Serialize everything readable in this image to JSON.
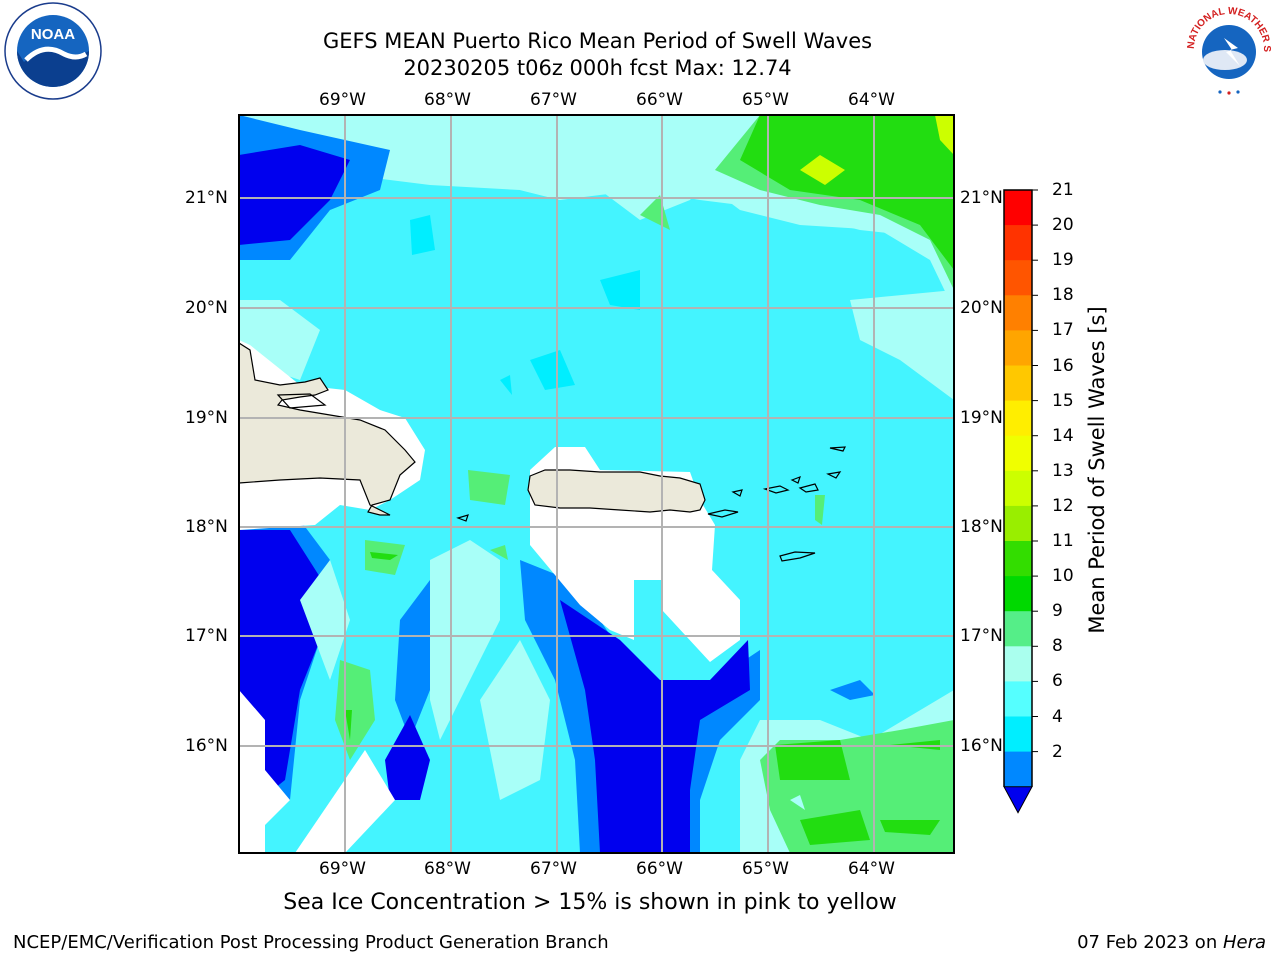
{
  "header": {
    "title_line1": "GEFS MEAN Puerto Rico Mean Period of Swell Waves",
    "title_line2": "20230205 t06z 000h fcst   Max: 12.74"
  },
  "logos": {
    "left": "NOAA",
    "right": "NATIONAL WEATHER SERVICE"
  },
  "map": {
    "lon_labels": [
      "69°W",
      "68°W",
      "67°W",
      "66°W",
      "65°W",
      "64°W"
    ],
    "lat_labels": [
      "21°N",
      "20°N",
      "19°N",
      "18°N",
      "17°N",
      "16°N"
    ]
  },
  "colorbar": {
    "title": "Mean Period of Swell Waves [s]",
    "ticks": [
      "21",
      "20",
      "19",
      "18",
      "17",
      "16",
      "15",
      "14",
      "13",
      "12",
      "11",
      "10",
      "9",
      "8",
      "6",
      "4",
      "2"
    ],
    "colors": [
      "#ff0000",
      "#ff3300",
      "#ff5500",
      "#ff8000",
      "#ffa500",
      "#ffc800",
      "#ffee00",
      "#f0ff00",
      "#ccff00",
      "#99ee00",
      "#33dd00",
      "#00d900",
      "#55ee88",
      "#aaffee",
      "#55ffff",
      "#00eeff",
      "#0088ff"
    ],
    "extend_color": "#0000ee"
  },
  "note": "Sea Ice Concentration > 15% is shown in pink to yellow",
  "footer": {
    "left": "NCEP/EMC/Verification Post Processing Product Generation Branch",
    "right_date": "07 Feb 2023 on ",
    "right_host": "Hera"
  }
}
